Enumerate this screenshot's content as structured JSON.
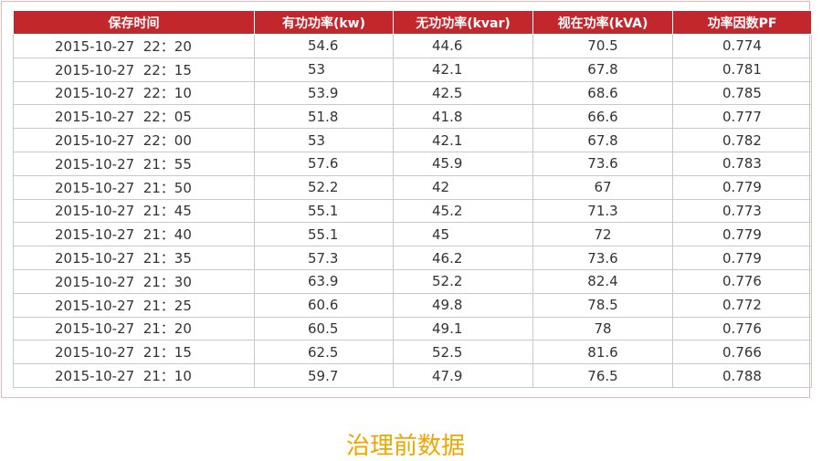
{
  "table": {
    "header": [
      "保存时间",
      "有功功率(kw)",
      "无功功率(kvar)",
      "视在功率(kVA)",
      "功率因数PF"
    ],
    "rows": [
      [
        "2015-10-27  22：20",
        "54.6",
        "44.6",
        "70.5",
        "0.774"
      ],
      [
        "2015-10-27  22：15",
        "53",
        "42.1",
        "67.8",
        "0.781"
      ],
      [
        "2015-10-27  22：10",
        "53.9",
        "42.5",
        "68.6",
        "0.785"
      ],
      [
        "2015-10-27  22：05",
        "51.8",
        "41.8",
        "66.6",
        "0.777"
      ],
      [
        "2015-10-27  22：00",
        "53",
        "42.1",
        "67.8",
        "0.782"
      ],
      [
        "2015-10-27  21：55",
        "57.6",
        "45.9",
        "73.6",
        "0.783"
      ],
      [
        "2015-10-27  21：50",
        "52.2",
        "42",
        "67",
        "0.779"
      ],
      [
        "2015-10-27  21：45",
        "55.1",
        "45.2",
        "71.3",
        "0.773"
      ],
      [
        "2015-10-27  21：40",
        "55.1",
        "45",
        "72",
        "0.779"
      ],
      [
        "2015-10-27  21：35",
        "57.3",
        "46.2",
        "73.6",
        "0.779"
      ],
      [
        "2015-10-27  21：30",
        "63.9",
        "52.2",
        "82.4",
        "0.776"
      ],
      [
        "2015-10-27  21：25",
        "60.6",
        "49.8",
        "78.5",
        "0.772"
      ],
      [
        "2015-10-27  21：20",
        "60.5",
        "49.1",
        "78",
        "0.776"
      ],
      [
        "2015-10-27  21：15",
        "62.5",
        "52.5",
        "81.6",
        "0.766"
      ],
      [
        "2015-10-27  21：10",
        "59.7",
        "47.9",
        "76.5",
        "0.788"
      ]
    ]
  },
  "caption": "治理前数据"
}
